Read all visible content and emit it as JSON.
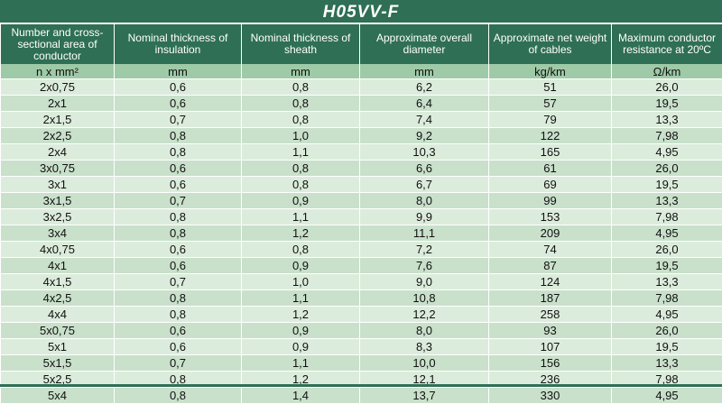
{
  "title": "H05VV-F",
  "headers": [
    "Number and cross-sectional area of conductor",
    "Nominal thickness of insulation",
    "Nominal thickness of sheath",
    "Approximate overall diameter",
    "Approximate net weight of cables",
    "Maximum conductor resistance at 20ºC"
  ],
  "units": [
    "n x mm²",
    "mm",
    "mm",
    "mm",
    "kg/km",
    "Ω/km"
  ],
  "rows": [
    [
      "2x0,75",
      "0,6",
      "0,8",
      "6,2",
      "51",
      "26,0"
    ],
    [
      "2x1",
      "0,6",
      "0,8",
      "6,4",
      "57",
      "19,5"
    ],
    [
      "2x1,5",
      "0,7",
      "0,8",
      "7,4",
      "79",
      "13,3"
    ],
    [
      "2x2,5",
      "0,8",
      "1,0",
      "9,2",
      "122",
      "7,98"
    ],
    [
      "2x4",
      "0,8",
      "1,1",
      "10,3",
      "165",
      "4,95"
    ],
    [
      "3x0,75",
      "0,6",
      "0,8",
      "6,6",
      "61",
      "26,0"
    ],
    [
      "3x1",
      "0,6",
      "0,8",
      "6,7",
      "69",
      "19,5"
    ],
    [
      "3x1,5",
      "0,7",
      "0,9",
      "8,0",
      "99",
      "13,3"
    ],
    [
      "3x2,5",
      "0,8",
      "1,1",
      "9,9",
      "153",
      "7,98"
    ],
    [
      "3x4",
      "0,8",
      "1,2",
      "11,1",
      "209",
      "4,95"
    ],
    [
      "4x0,75",
      "0,6",
      "0,8",
      "7,2",
      "74",
      "26,0"
    ],
    [
      "4x1",
      "0,6",
      "0,9",
      "7,6",
      "87",
      "19,5"
    ],
    [
      "4x1,5",
      "0,7",
      "1,0",
      "9,0",
      "124",
      "13,3"
    ],
    [
      "4x2,5",
      "0,8",
      "1,1",
      "10,8",
      "187",
      "7,98"
    ],
    [
      "4x4",
      "0,8",
      "1,2",
      "12,2",
      "258",
      "4,95"
    ],
    [
      "5x0,75",
      "0,6",
      "0,9",
      "8,0",
      "93",
      "26,0"
    ],
    [
      "5x1",
      "0,6",
      "0,9",
      "8,3",
      "107",
      "19,5"
    ],
    [
      "5x1,5",
      "0,7",
      "1,1",
      "10,0",
      "156",
      "13,3"
    ],
    [
      "5x2,5",
      "0,8",
      "1,2",
      "12,1",
      "236",
      "7,98"
    ],
    [
      "5x4",
      "0,8",
      "1,4",
      "13,7",
      "330",
      "4,95"
    ]
  ]
}
